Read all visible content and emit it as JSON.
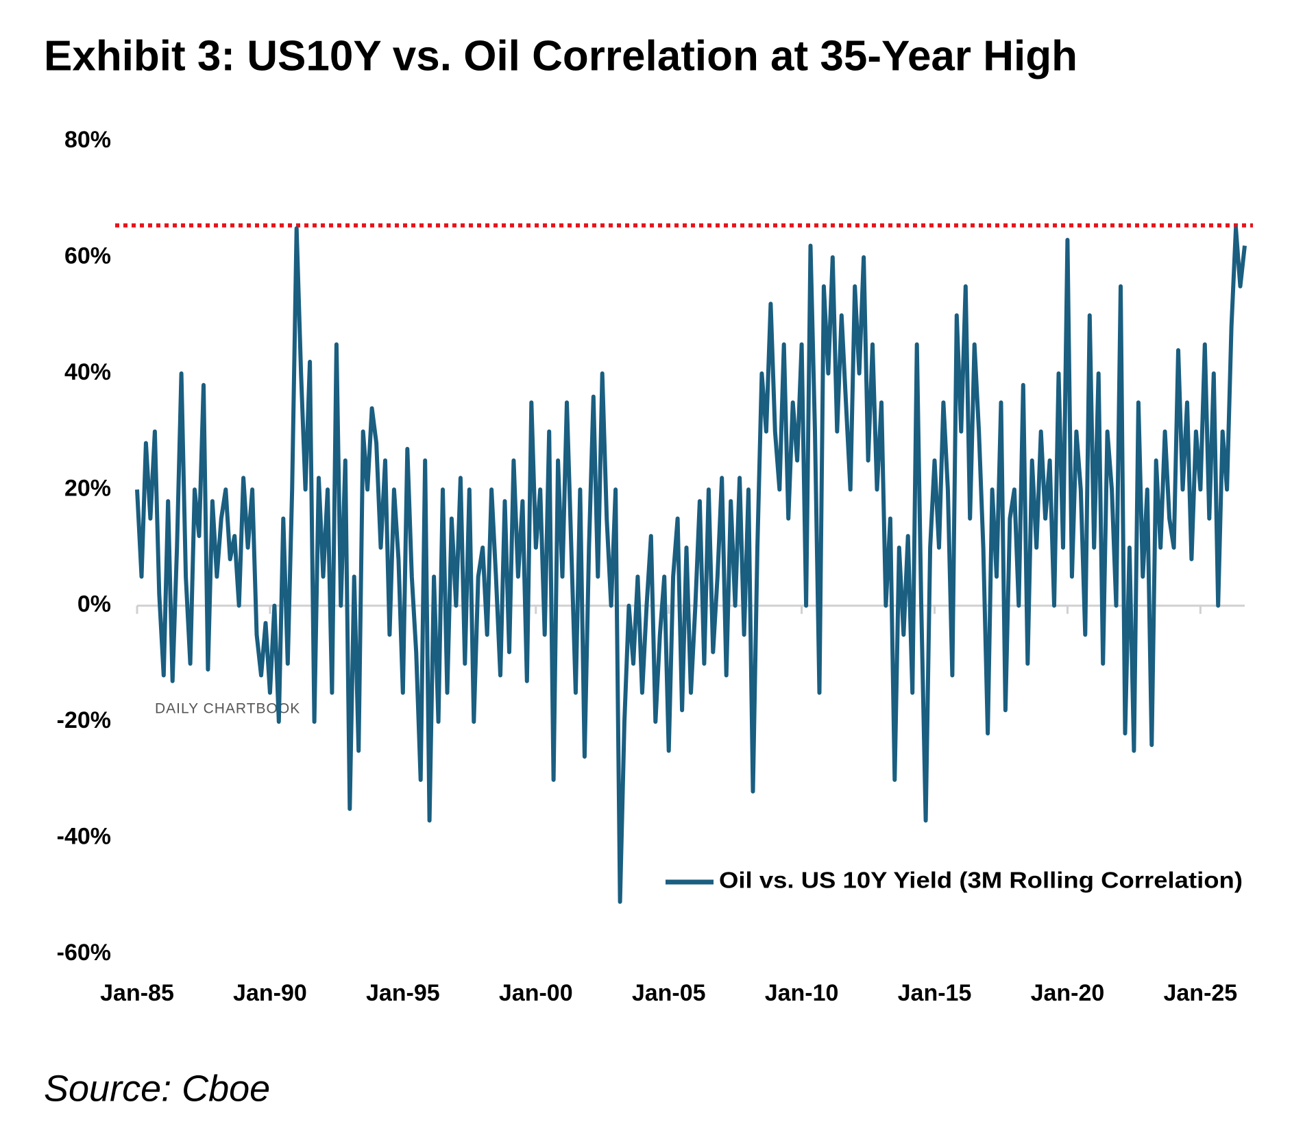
{
  "chart_data": {
    "type": "line",
    "title": "Exhibit 3: US10Y vs. Oil Correlation at 35-Year High",
    "source": "Source: Cboe",
    "watermark": "DAILY CHARTBOOK",
    "ylim": [
      -60,
      80
    ],
    "yticks": [
      {
        "value": 80,
        "label": "80%"
      },
      {
        "value": 60,
        "label": "60%"
      },
      {
        "value": 40,
        "label": "40%"
      },
      {
        "value": 20,
        "label": "20%"
      },
      {
        "value": 0,
        "label": "0%"
      },
      {
        "value": -20,
        "label": "-20%"
      },
      {
        "value": -40,
        "label": "-40%"
      },
      {
        "value": -60,
        "label": "-60%"
      }
    ],
    "reference_line": {
      "value": 65.5,
      "color": "#e8141b"
    },
    "legend": "lower right",
    "categories": [
      "Jan-85",
      null,
      null,
      null,
      null,
      null,
      null,
      null,
      null,
      null,
      null,
      null,
      null,
      null,
      null,
      null,
      null,
      null,
      null,
      null,
      null,
      null,
      null,
      null,
      null,
      null,
      null,
      null,
      null,
      null,
      "Jan-90",
      null,
      null,
      null,
      null,
      null,
      null,
      null,
      null,
      null,
      null,
      null,
      null,
      null,
      null,
      null,
      null,
      null,
      null,
      null,
      null,
      null,
      null,
      null,
      null,
      null,
      null,
      null,
      null,
      null,
      "Jan-95",
      null,
      null,
      null,
      null,
      null,
      null,
      null,
      null,
      null,
      null,
      null,
      null,
      null,
      null,
      null,
      null,
      null,
      null,
      null,
      null,
      null,
      null,
      null,
      null,
      null,
      null,
      null,
      null,
      null,
      "Jan-00",
      null,
      null,
      null,
      null,
      null,
      null,
      null,
      null,
      null,
      null,
      null,
      null,
      null,
      null,
      null,
      null,
      null,
      null,
      null,
      null,
      null,
      null,
      null,
      null,
      null,
      null,
      null,
      null,
      null,
      "Jan-05",
      null,
      null,
      null,
      null,
      null,
      null,
      null,
      null,
      null,
      null,
      null,
      null,
      null,
      null,
      null,
      null,
      null,
      null,
      null,
      null,
      null,
      null,
      null,
      null,
      null,
      null,
      null,
      null,
      null,
      "Jan-10",
      null,
      null,
      null,
      null,
      null,
      null,
      null,
      null,
      null,
      null,
      null,
      null,
      null,
      null,
      null,
      null,
      null,
      null,
      null,
      null,
      null,
      null,
      null,
      null,
      null,
      null,
      null,
      null,
      null,
      "Jan-15",
      null,
      null,
      null,
      null,
      null,
      null,
      null,
      null,
      null,
      null,
      null,
      null,
      null,
      null,
      null,
      null,
      null,
      null,
      null,
      null,
      null,
      null,
      null,
      null,
      null,
      null,
      null,
      null,
      null,
      "Jan-20",
      null,
      null,
      null,
      null,
      null,
      null,
      null,
      null,
      null,
      null,
      null,
      null,
      null,
      null,
      null,
      null,
      null,
      null,
      null,
      null,
      null,
      null,
      null,
      null,
      null,
      null,
      null,
      null,
      null,
      "Jan-25",
      null,
      null,
      null,
      null,
      null,
      null,
      null,
      null,
      null,
      null
    ],
    "series": [
      {
        "name": "Oil vs. US 10Y Yield (3M Rolling Correlation)",
        "color": "#1a5e80",
        "values": [
          20,
          5,
          28,
          15,
          30,
          2,
          -12,
          18,
          -13,
          10,
          40,
          5,
          -10,
          20,
          12,
          38,
          -11,
          18,
          5,
          15,
          20,
          8,
          12,
          0,
          22,
          10,
          20,
          -5,
          -12,
          -3,
          -15,
          0,
          -20,
          15,
          -10,
          20,
          65,
          40,
          20,
          42,
          -20,
          22,
          5,
          20,
          -15,
          45,
          0,
          25,
          -35,
          5,
          -25,
          30,
          20,
          34,
          28,
          10,
          25,
          -5,
          20,
          8,
          -15,
          27,
          5,
          -8,
          -30,
          25,
          -37,
          5,
          -20,
          20,
          -15,
          15,
          0,
          22,
          -10,
          20,
          -20,
          5,
          10,
          -5,
          20,
          5,
          -12,
          18,
          -8,
          25,
          5,
          18,
          -13,
          35,
          10,
          20,
          -5,
          30,
          -30,
          25,
          5,
          35,
          10,
          -15,
          20,
          -26,
          10,
          36,
          5,
          40,
          15,
          0,
          20,
          -51,
          -20,
          0,
          -10,
          5,
          -15,
          0,
          12,
          -20,
          -5,
          5,
          -25,
          5,
          15,
          -18,
          10,
          -15,
          0,
          18,
          -10,
          20,
          -8,
          5,
          22,
          -12,
          18,
          0,
          22,
          -5,
          20,
          -32,
          10,
          40,
          30,
          52,
          30,
          20,
          45,
          15,
          35,
          25,
          45,
          0,
          62,
          30,
          -15,
          55,
          40,
          60,
          30,
          50,
          35,
          20,
          55,
          40,
          60,
          25,
          45,
          20,
          35,
          0,
          15,
          -30,
          10,
          -5,
          12,
          -15,
          45,
          0,
          -37,
          10,
          25,
          10,
          35,
          20,
          -12,
          50,
          30,
          55,
          15,
          45,
          30,
          10,
          -22,
          20,
          5,
          35,
          -18,
          15,
          20,
          0,
          38,
          -10,
          25,
          10,
          30,
          15,
          25,
          0,
          40,
          10,
          63,
          5,
          30,
          20,
          -5,
          50,
          10,
          40,
          -10,
          30,
          20,
          0,
          55,
          -22,
          10,
          -25,
          35,
          5,
          20,
          -24,
          25,
          10,
          30,
          15,
          10,
          44,
          20,
          35,
          8,
          30,
          20,
          45,
          15,
          40,
          0,
          30,
          20,
          48,
          65,
          55,
          62
        ]
      }
    ]
  }
}
